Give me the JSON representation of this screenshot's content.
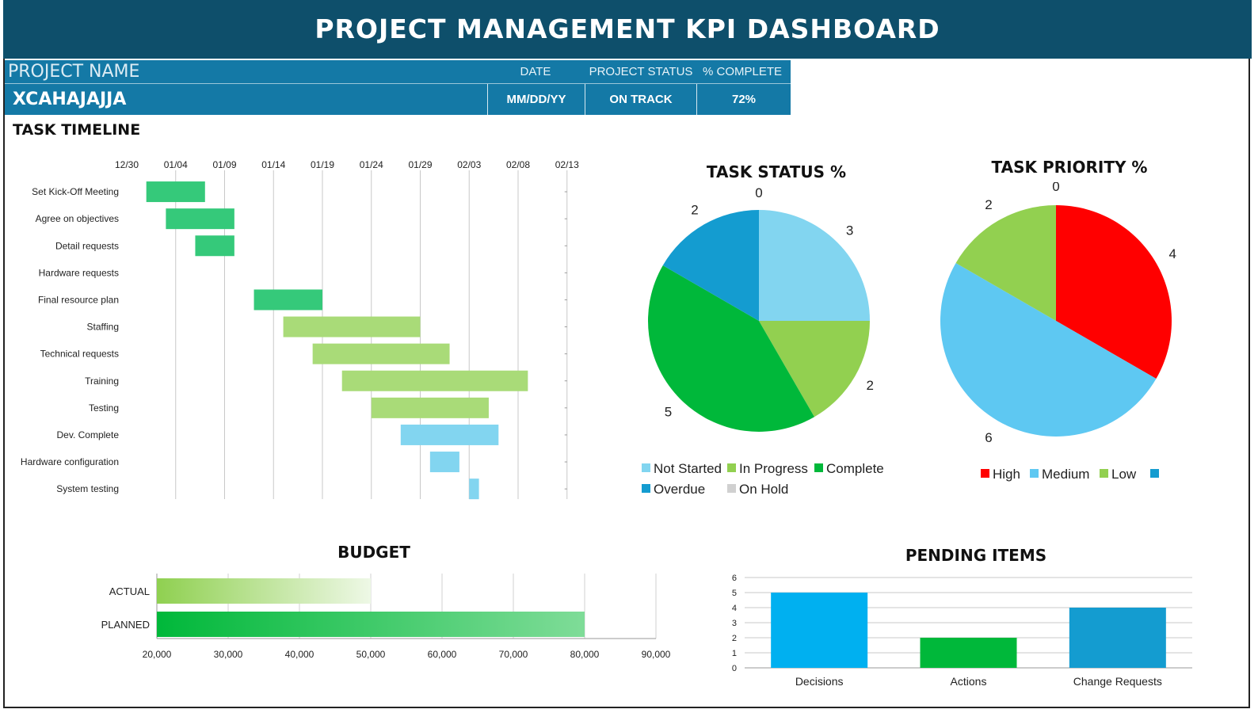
{
  "header": {
    "title": "PROJECT MANAGEMENT KPI DASHBOARD"
  },
  "project": {
    "name_label": "PROJECT NAME",
    "name_value": "XCAHAJAJJA",
    "date_label": "DATE",
    "date_value": "MM/DD/YY",
    "status_label": "PROJECT STATUS",
    "status_value": "ON TRACK",
    "complete_label": "% COMPLETE",
    "complete_value": "72%"
  },
  "timeline": {
    "title": "TASK TIMELINE",
    "tick_labels": [
      "12/30",
      "01/04",
      "01/09",
      "01/14",
      "01/19",
      "01/24",
      "01/29",
      "02/03",
      "02/08",
      "02/13"
    ]
  },
  "status_chart": {
    "title": "TASK STATUS %",
    "legend": [
      "Not Started",
      "In Progress",
      "Complete",
      "Overdue",
      "On Hold"
    ]
  },
  "priority_chart": {
    "title": "TASK PRIORITY %",
    "legend": [
      "High",
      "Medium",
      "Low",
      ""
    ]
  },
  "budget_chart": {
    "title": "BUDGET",
    "tick_labels": [
      "20,000",
      "30,000",
      "40,000",
      "50,000",
      "60,000",
      "70,000",
      "80,000",
      "90,000"
    ]
  },
  "pending_chart": {
    "title": "PENDING ITEMS"
  },
  "colors": {
    "header_bg": "#0e4f6b",
    "project_bar_bg": "#1479a6",
    "not_started": "#82d5f0",
    "in_progress": "#92d050",
    "complete": "#00b83a",
    "overdue": "#149cd0",
    "on_hold": "#d0d0d0",
    "high": "#ff0000",
    "medium": "#5ec8f2",
    "low": "#92d050"
  },
  "chart_data": [
    {
      "type": "bar",
      "orientation": "horizontal-gantt",
      "title": "TASK TIMELINE",
      "x_type": "date",
      "xlim": [
        "12/30",
        "02/13"
      ],
      "tasks": [
        {
          "label": "Set Kick-Off Meeting",
          "start": "01/01",
          "end": "01/07",
          "color": "#35c97a"
        },
        {
          "label": "Agree on objectives",
          "start": "01/03",
          "end": "01/10",
          "color": "#35c97a"
        },
        {
          "label": "Detail requests",
          "start": "01/06",
          "end": "01/10",
          "color": "#35c97a"
        },
        {
          "label": "Hardware requests",
          "start": null,
          "end": null,
          "color": "#35c97a"
        },
        {
          "label": "Final resource plan",
          "start": "01/12",
          "end": "01/19",
          "color": "#35c97a"
        },
        {
          "label": "Staffing",
          "start": "01/15",
          "end": "01/29",
          "color": "#a9db78"
        },
        {
          "label": "Technical requests",
          "start": "01/18",
          "end": "02/01",
          "color": "#a9db78"
        },
        {
          "label": "Training",
          "start": "01/21",
          "end": "02/09",
          "color": "#a9db78"
        },
        {
          "label": "Testing",
          "start": "01/24",
          "end": "02/05",
          "color": "#a9db78"
        },
        {
          "label": "Dev. Complete",
          "start": "01/27",
          "end": "02/06",
          "color": "#82d5f0"
        },
        {
          "label": "Hardware configuration",
          "start": "01/30",
          "end": "02/02",
          "color": "#82d5f0"
        },
        {
          "label": "System testing",
          "start": "02/03",
          "end": "02/04",
          "color": "#82d5f0"
        }
      ]
    },
    {
      "type": "pie",
      "title": "TASK STATUS %",
      "slices": [
        {
          "name": "Not Started",
          "value": 3,
          "color": "#82d5f0"
        },
        {
          "name": "In Progress",
          "value": 2,
          "color": "#92d050"
        },
        {
          "name": "Complete",
          "value": 5,
          "color": "#00b83a"
        },
        {
          "name": "Overdue",
          "value": 2,
          "color": "#149cd0"
        },
        {
          "name": "On Hold",
          "value": 0,
          "color": "#d0d0d0"
        }
      ],
      "legend": "bottom"
    },
    {
      "type": "pie",
      "title": "TASK PRIORITY %",
      "slices": [
        {
          "name": "High",
          "value": 4,
          "color": "#ff0000"
        },
        {
          "name": "Medium",
          "value": 6,
          "color": "#5ec8f2"
        },
        {
          "name": "Low",
          "value": 2,
          "color": "#92d050"
        },
        {
          "name": "",
          "value": 0,
          "color": "#149cd0"
        }
      ],
      "legend": "bottom"
    },
    {
      "type": "bar",
      "orientation": "horizontal",
      "title": "BUDGET",
      "categories": [
        "ACTUAL",
        "PLANNED"
      ],
      "values": [
        50000,
        80000
      ],
      "xlim": [
        20000,
        90000
      ],
      "grid": true
    },
    {
      "type": "bar",
      "title": "PENDING ITEMS",
      "categories": [
        "Decisions",
        "Actions",
        "Change Requests"
      ],
      "values": [
        5,
        2,
        4
      ],
      "colors": [
        "#00b0f0",
        "#00b83a",
        "#149cd0"
      ],
      "ylim": [
        0,
        6
      ],
      "yticks": [
        0,
        1,
        2,
        3,
        4,
        5,
        6
      ],
      "grid": true
    }
  ]
}
